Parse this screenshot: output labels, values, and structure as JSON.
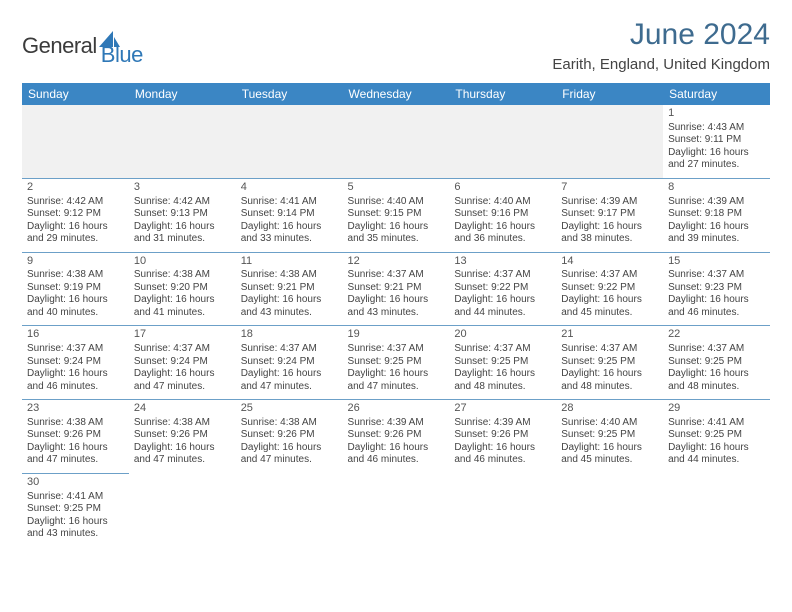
{
  "logo": {
    "text1": "General",
    "text2": "Blue",
    "sail_color": "#2f78b7"
  },
  "title": "June 2024",
  "location": "Earith, England, United Kingdom",
  "colors": {
    "header_bg": "#3b86c4",
    "header_text": "#ffffff",
    "cell_border": "#6ca0c8",
    "title_color": "#3e6b8f",
    "body_text": "#444444",
    "empty_bg": "#f1f1f1"
  },
  "weekdays": [
    "Sunday",
    "Monday",
    "Tuesday",
    "Wednesday",
    "Thursday",
    "Friday",
    "Saturday"
  ],
  "weeks": [
    [
      null,
      null,
      null,
      null,
      null,
      null,
      {
        "n": "1",
        "sr": "Sunrise: 4:43 AM",
        "ss": "Sunset: 9:11 PM",
        "d1": "Daylight: 16 hours",
        "d2": "and 27 minutes."
      }
    ],
    [
      {
        "n": "2",
        "sr": "Sunrise: 4:42 AM",
        "ss": "Sunset: 9:12 PM",
        "d1": "Daylight: 16 hours",
        "d2": "and 29 minutes."
      },
      {
        "n": "3",
        "sr": "Sunrise: 4:42 AM",
        "ss": "Sunset: 9:13 PM",
        "d1": "Daylight: 16 hours",
        "d2": "and 31 minutes."
      },
      {
        "n": "4",
        "sr": "Sunrise: 4:41 AM",
        "ss": "Sunset: 9:14 PM",
        "d1": "Daylight: 16 hours",
        "d2": "and 33 minutes."
      },
      {
        "n": "5",
        "sr": "Sunrise: 4:40 AM",
        "ss": "Sunset: 9:15 PM",
        "d1": "Daylight: 16 hours",
        "d2": "and 35 minutes."
      },
      {
        "n": "6",
        "sr": "Sunrise: 4:40 AM",
        "ss": "Sunset: 9:16 PM",
        "d1": "Daylight: 16 hours",
        "d2": "and 36 minutes."
      },
      {
        "n": "7",
        "sr": "Sunrise: 4:39 AM",
        "ss": "Sunset: 9:17 PM",
        "d1": "Daylight: 16 hours",
        "d2": "and 38 minutes."
      },
      {
        "n": "8",
        "sr": "Sunrise: 4:39 AM",
        "ss": "Sunset: 9:18 PM",
        "d1": "Daylight: 16 hours",
        "d2": "and 39 minutes."
      }
    ],
    [
      {
        "n": "9",
        "sr": "Sunrise: 4:38 AM",
        "ss": "Sunset: 9:19 PM",
        "d1": "Daylight: 16 hours",
        "d2": "and 40 minutes."
      },
      {
        "n": "10",
        "sr": "Sunrise: 4:38 AM",
        "ss": "Sunset: 9:20 PM",
        "d1": "Daylight: 16 hours",
        "d2": "and 41 minutes."
      },
      {
        "n": "11",
        "sr": "Sunrise: 4:38 AM",
        "ss": "Sunset: 9:21 PM",
        "d1": "Daylight: 16 hours",
        "d2": "and 43 minutes."
      },
      {
        "n": "12",
        "sr": "Sunrise: 4:37 AM",
        "ss": "Sunset: 9:21 PM",
        "d1": "Daylight: 16 hours",
        "d2": "and 43 minutes."
      },
      {
        "n": "13",
        "sr": "Sunrise: 4:37 AM",
        "ss": "Sunset: 9:22 PM",
        "d1": "Daylight: 16 hours",
        "d2": "and 44 minutes."
      },
      {
        "n": "14",
        "sr": "Sunrise: 4:37 AM",
        "ss": "Sunset: 9:22 PM",
        "d1": "Daylight: 16 hours",
        "d2": "and 45 minutes."
      },
      {
        "n": "15",
        "sr": "Sunrise: 4:37 AM",
        "ss": "Sunset: 9:23 PM",
        "d1": "Daylight: 16 hours",
        "d2": "and 46 minutes."
      }
    ],
    [
      {
        "n": "16",
        "sr": "Sunrise: 4:37 AM",
        "ss": "Sunset: 9:24 PM",
        "d1": "Daylight: 16 hours",
        "d2": "and 46 minutes."
      },
      {
        "n": "17",
        "sr": "Sunrise: 4:37 AM",
        "ss": "Sunset: 9:24 PM",
        "d1": "Daylight: 16 hours",
        "d2": "and 47 minutes."
      },
      {
        "n": "18",
        "sr": "Sunrise: 4:37 AM",
        "ss": "Sunset: 9:24 PM",
        "d1": "Daylight: 16 hours",
        "d2": "and 47 minutes."
      },
      {
        "n": "19",
        "sr": "Sunrise: 4:37 AM",
        "ss": "Sunset: 9:25 PM",
        "d1": "Daylight: 16 hours",
        "d2": "and 47 minutes."
      },
      {
        "n": "20",
        "sr": "Sunrise: 4:37 AM",
        "ss": "Sunset: 9:25 PM",
        "d1": "Daylight: 16 hours",
        "d2": "and 48 minutes."
      },
      {
        "n": "21",
        "sr": "Sunrise: 4:37 AM",
        "ss": "Sunset: 9:25 PM",
        "d1": "Daylight: 16 hours",
        "d2": "and 48 minutes."
      },
      {
        "n": "22",
        "sr": "Sunrise: 4:37 AM",
        "ss": "Sunset: 9:25 PM",
        "d1": "Daylight: 16 hours",
        "d2": "and 48 minutes."
      }
    ],
    [
      {
        "n": "23",
        "sr": "Sunrise: 4:38 AM",
        "ss": "Sunset: 9:26 PM",
        "d1": "Daylight: 16 hours",
        "d2": "and 47 minutes."
      },
      {
        "n": "24",
        "sr": "Sunrise: 4:38 AM",
        "ss": "Sunset: 9:26 PM",
        "d1": "Daylight: 16 hours",
        "d2": "and 47 minutes."
      },
      {
        "n": "25",
        "sr": "Sunrise: 4:38 AM",
        "ss": "Sunset: 9:26 PM",
        "d1": "Daylight: 16 hours",
        "d2": "and 47 minutes."
      },
      {
        "n": "26",
        "sr": "Sunrise: 4:39 AM",
        "ss": "Sunset: 9:26 PM",
        "d1": "Daylight: 16 hours",
        "d2": "and 46 minutes."
      },
      {
        "n": "27",
        "sr": "Sunrise: 4:39 AM",
        "ss": "Sunset: 9:26 PM",
        "d1": "Daylight: 16 hours",
        "d2": "and 46 minutes."
      },
      {
        "n": "28",
        "sr": "Sunrise: 4:40 AM",
        "ss": "Sunset: 9:25 PM",
        "d1": "Daylight: 16 hours",
        "d2": "and 45 minutes."
      },
      {
        "n": "29",
        "sr": "Sunrise: 4:41 AM",
        "ss": "Sunset: 9:25 PM",
        "d1": "Daylight: 16 hours",
        "d2": "and 44 minutes."
      }
    ],
    [
      {
        "n": "30",
        "sr": "Sunrise: 4:41 AM",
        "ss": "Sunset: 9:25 PM",
        "d1": "Daylight: 16 hours",
        "d2": "and 43 minutes."
      },
      null,
      null,
      null,
      null,
      null,
      null
    ]
  ]
}
